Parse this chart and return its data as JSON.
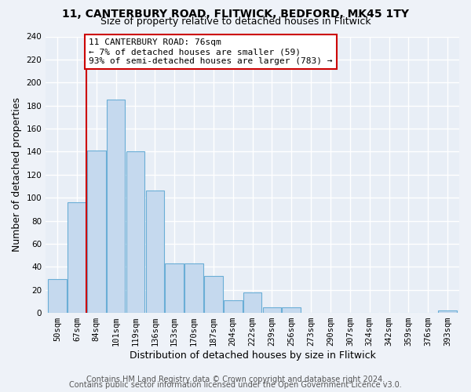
{
  "title_line1": "11, CANTERBURY ROAD, FLITWICK, BEDFORD, MK45 1TY",
  "title_line2": "Size of property relative to detached houses in Flitwick",
  "xlabel": "Distribution of detached houses by size in Flitwick",
  "ylabel": "Number of detached properties",
  "bar_labels": [
    "50sqm",
    "67sqm",
    "84sqm",
    "101sqm",
    "119sqm",
    "136sqm",
    "153sqm",
    "170sqm",
    "187sqm",
    "204sqm",
    "222sqm",
    "239sqm",
    "256sqm",
    "273sqm",
    "290sqm",
    "307sqm",
    "324sqm",
    "342sqm",
    "359sqm",
    "376sqm",
    "393sqm"
  ],
  "bar_values": [
    29,
    96,
    141,
    185,
    140,
    106,
    43,
    43,
    32,
    11,
    18,
    5,
    5,
    0,
    0,
    0,
    0,
    0,
    0,
    0,
    2
  ],
  "bar_color": "#c5d9ee",
  "bar_edge_color": "#6aaed6",
  "annotation_line1": "11 CANTERBURY ROAD: 76sqm",
  "annotation_line2": "← 7% of detached houses are smaller (59)",
  "annotation_line3": "93% of semi-detached houses are larger (783) →",
  "annotation_box_edge_color": "#cc0000",
  "annotation_box_fill": "#ffffff",
  "vline_x": 1.5,
  "vline_color": "#cc0000",
  "ylim": [
    0,
    240
  ],
  "yticks": [
    0,
    20,
    40,
    60,
    80,
    100,
    120,
    140,
    160,
    180,
    200,
    220,
    240
  ],
  "footer_line1": "Contains HM Land Registry data © Crown copyright and database right 2024.",
  "footer_line2": "Contains public sector information licensed under the Open Government Licence v3.0.",
  "bg_color": "#eef2f8",
  "plot_bg_color": "#e8eef6",
  "grid_color": "#ffffff",
  "title_fontsize": 10,
  "subtitle_fontsize": 9,
  "axis_label_fontsize": 9,
  "tick_fontsize": 7.5,
  "footer_fontsize": 7,
  "annotation_fontsize": 8
}
